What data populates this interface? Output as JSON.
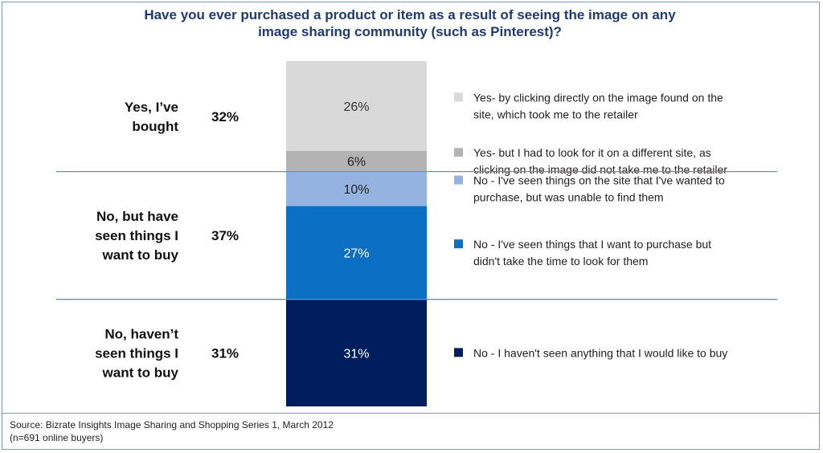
{
  "title": {
    "line1": "Have you ever purchased a product or item as a result of seeing the image on any",
    "line2": "image sharing community (such as Pinterest)?"
  },
  "colors": {
    "title": "#1f3a78",
    "divider": "#6a8fbd",
    "yes_direct": "#d9d9d9",
    "yes_other_site": "#b3b3b3",
    "no_unable": "#95b3e0",
    "no_no_time": "#0b6fc4",
    "no_nothing": "#001e5e"
  },
  "chart_data": {
    "type": "bar",
    "stacked": true,
    "ylim": [
      0,
      100
    ],
    "groups": [
      {
        "label_lines": [
          "Yes, I’ve",
          "bought"
        ],
        "total": 32,
        "total_label": "32%"
      },
      {
        "label_lines": [
          "No, but have",
          "seen things I",
          "want to buy"
        ],
        "total": 37,
        "total_label": "37%"
      },
      {
        "label_lines": [
          "No, haven’t",
          "seen things I",
          "want to buy"
        ],
        "total": 31,
        "total_label": "31%"
      }
    ],
    "segments": [
      {
        "value": 26,
        "label": "26%",
        "group": 0,
        "color": "#d9d9d9",
        "text_color": "#333333",
        "legend": [
          "Yes- by clicking directly on the image found on the",
          "site, which took me to the retailer"
        ]
      },
      {
        "value": 6,
        "label": "6%",
        "group": 0,
        "color": "#b3b3b3",
        "text_color": "#222222",
        "legend": [
          "Yes- but I had to look for it on a different site, as",
          "clicking on the image did not take me to the retailer"
        ]
      },
      {
        "value": 10,
        "label": "10%",
        "group": 1,
        "color": "#95b3e0",
        "text_color": "#222222",
        "legend": [
          "No - I've seen things on the site that I've wanted to",
          "purchase, but was unable to find them"
        ]
      },
      {
        "value": 27,
        "label": "27%",
        "group": 1,
        "color": "#0b6fc4",
        "text_color": "#ffffff",
        "legend": [
          "No - I've seen things that I want to purchase but",
          "didn't take the time to look for them"
        ]
      },
      {
        "value": 31,
        "label": "31%",
        "group": 2,
        "color": "#001e5e",
        "text_color": "#ffffff",
        "legend": [
          "No - I haven't seen anything that I would like to buy"
        ]
      }
    ]
  },
  "footer": {
    "source": "Source: Bizrate Insights Image Sharing and Shopping Series 1, March 2012",
    "sample": "(n=691 online buyers)"
  }
}
